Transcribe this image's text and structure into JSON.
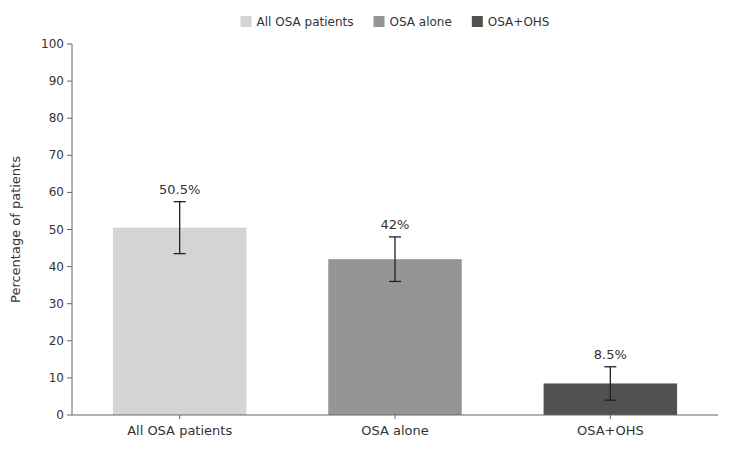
{
  "chart_data": {
    "type": "bar",
    "categories": [
      "All OSA patients",
      "OSA alone",
      "OSA+OHS"
    ],
    "values": [
      50.5,
      42.0,
      8.5
    ],
    "errors": [
      7.0,
      6.0,
      4.5
    ],
    "value_labels": [
      "50.5%",
      "42%",
      "8.5%"
    ],
    "colors": [
      "#d4d4d4",
      "#959595",
      "#515151"
    ],
    "ylabel": "Percentage of patients",
    "ylim": [
      0,
      100
    ],
    "yticks": [
      0,
      10,
      20,
      30,
      40,
      50,
      60,
      70,
      80,
      90,
      100
    ],
    "grid": false,
    "legend": "top",
    "data_labels": true
  }
}
